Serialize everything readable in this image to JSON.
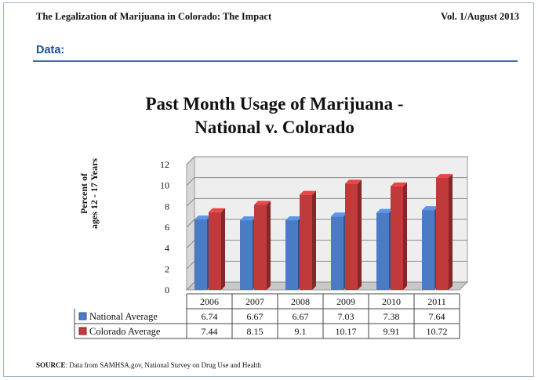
{
  "header": {
    "left_title": "The Legalization of Marijuana in Colorado:  The Impact",
    "right_title": "Vol. 1/August 2013"
  },
  "section_label": "Data:",
  "colors": {
    "section": "#1f4e8c",
    "national": "#4a7bc4",
    "colorado": "#c0393b"
  },
  "chart_data": {
    "type": "bar",
    "title_line1": "Past Month Usage of Marijuana -",
    "title_line2": "National v. Colorado",
    "ylabel_line1": "Percent of",
    "ylabel_line2": "ages 12 - 17 Years",
    "categories": [
      "2006",
      "2007",
      "2008",
      "2009",
      "2010",
      "2011"
    ],
    "series": [
      {
        "name": "National Average",
        "values": [
          6.74,
          6.67,
          6.67,
          7.03,
          7.38,
          7.64
        ]
      },
      {
        "name": "Colorado Average",
        "values": [
          7.44,
          8.15,
          9.1,
          10.17,
          9.91,
          10.72
        ]
      }
    ],
    "value_labels": [
      [
        "6.74",
        "6.67",
        "6.67",
        "7.03",
        "7.38",
        "7.64"
      ],
      [
        "7.44",
        "8.15",
        "9.1",
        "10.17",
        "9.91",
        "10.72"
      ]
    ],
    "ylim": [
      0,
      12
    ],
    "yticks": [
      "0",
      "2",
      "4",
      "6",
      "8",
      "10",
      "12"
    ],
    "grid": true,
    "data_table": true
  },
  "source": {
    "label": "SOURCE",
    "text": ":  Data from SAMHSA.gov, National Survey on Drug Use and Health"
  }
}
